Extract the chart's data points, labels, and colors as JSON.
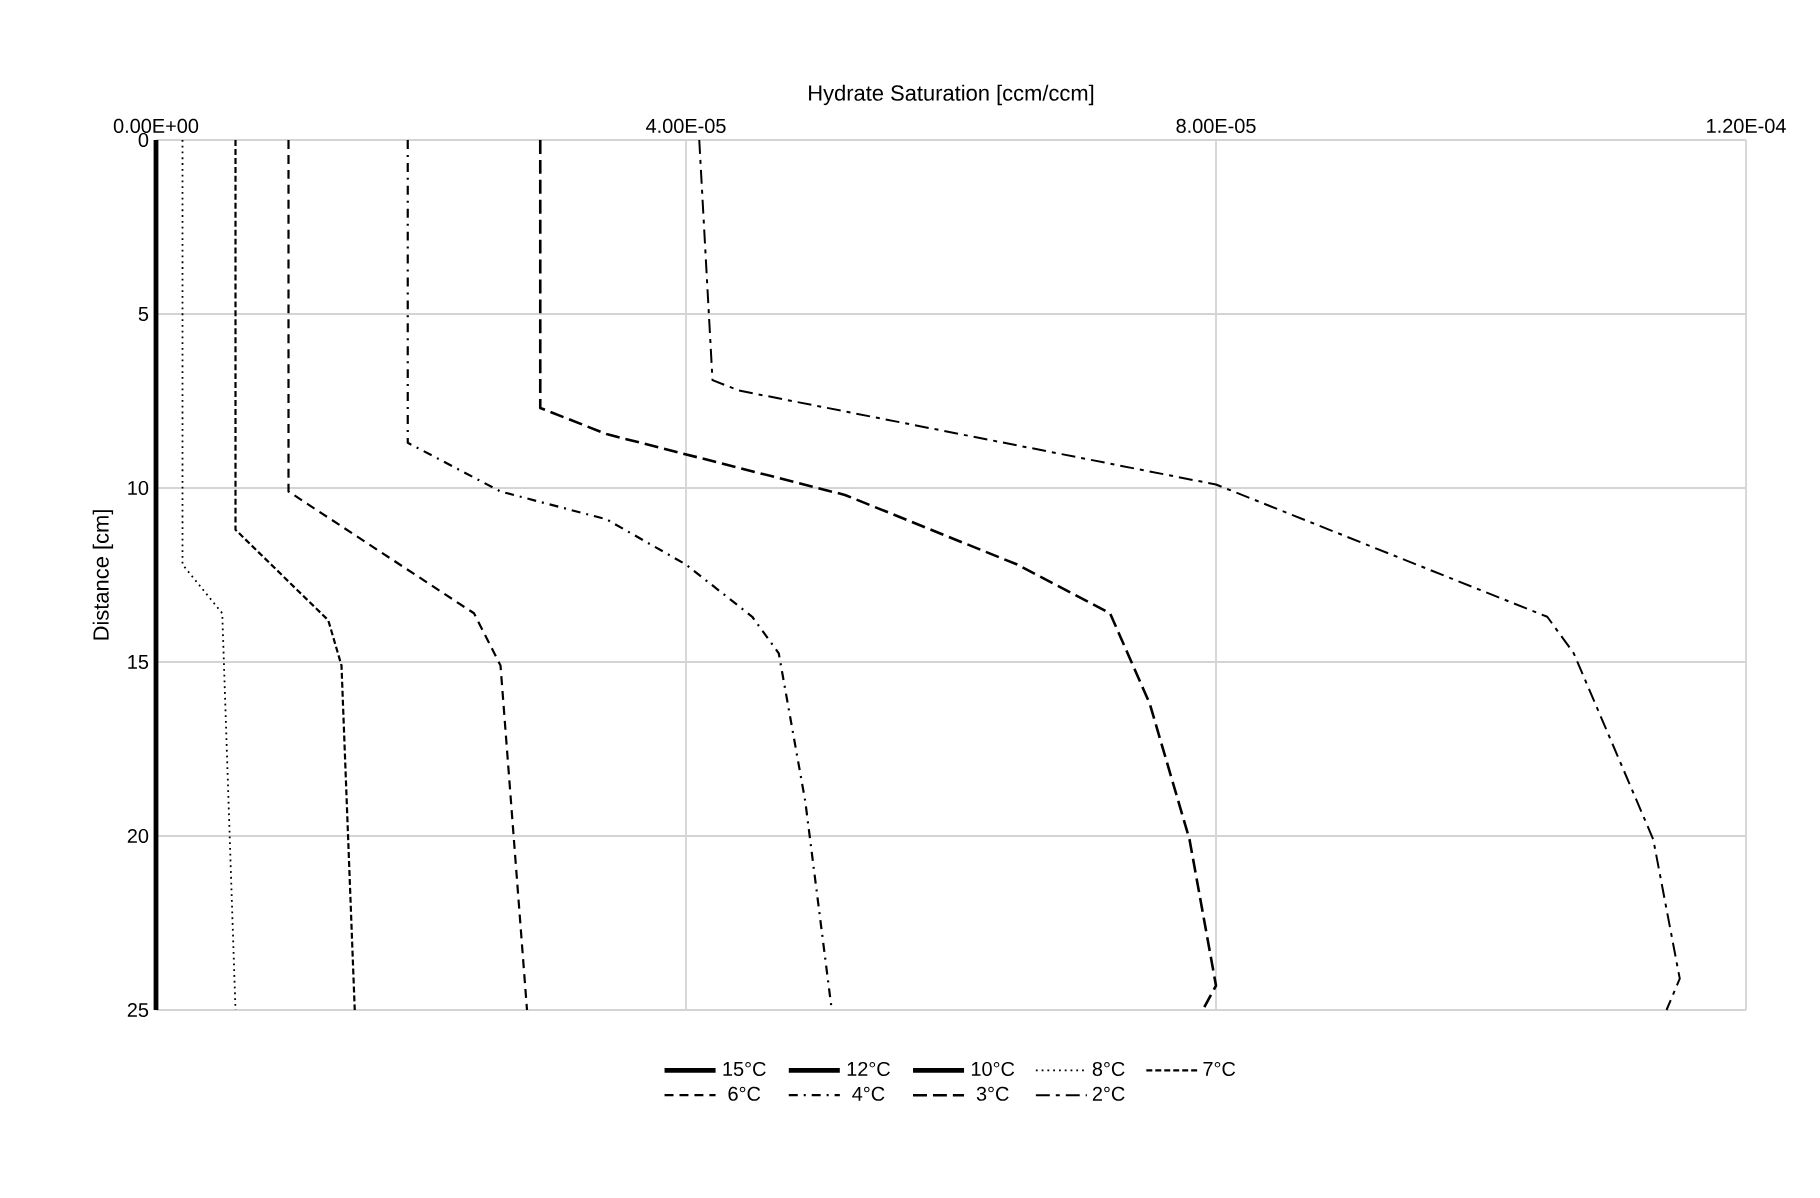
{
  "chart_data": {
    "type": "line",
    "orientation": "horizontal",
    "xlabel": "Hydrate Saturation [ccm/ccm]",
    "ylabel": "Distance [cm]",
    "xlim": [
      0,
      0.00012
    ],
    "ylim": [
      25,
      0
    ],
    "xticks": [
      {
        "value": 0,
        "label": "0.00E+00"
      },
      {
        "value": 4e-05,
        "label": "4.00E-05"
      },
      {
        "value": 8e-05,
        "label": "8.00E-05"
      },
      {
        "value": 0.00012,
        "label": "1.20E-04"
      }
    ],
    "yticks": [
      0,
      5,
      10,
      15,
      20,
      25
    ],
    "grid": true,
    "legend": "bottom",
    "series": [
      {
        "name": "15°C",
        "color": "#000000",
        "line_style": "solid",
        "x": [
          null,
          null
        ],
        "values": [
          null,
          null
        ]
      },
      {
        "name": "12°C",
        "color": "#000000",
        "line_style": "solid",
        "x": [
          null,
          null
        ],
        "values": [
          null,
          null
        ]
      },
      {
        "name": "10°C",
        "color": "#000000",
        "line_style": "solid",
        "x": [
          0,
          25
        ],
        "values": [
          0,
          0
        ]
      },
      {
        "name": "8°C",
        "color": "#000000",
        "line_style": "dotted",
        "x": [
          0,
          12.2,
          13.6,
          25
        ],
        "values": [
          2e-06,
          2e-06,
          5e-06,
          6e-06
        ]
      },
      {
        "name": "7°C",
        "color": "#000000",
        "line_style": "dashed",
        "x": [
          0,
          11.2,
          13.8,
          15.1,
          25
        ],
        "values": [
          6e-06,
          6e-06,
          1.3e-05,
          1.4e-05,
          1.5e-05
        ]
      },
      {
        "name": "6°C",
        "color": "#000000",
        "line_style": "loosely dashed",
        "x": [
          0,
          10.1,
          13.6,
          15.1,
          25
        ],
        "values": [
          1e-05,
          1e-05,
          2.4e-05,
          2.6e-05,
          2.8e-05
        ]
      },
      {
        "name": "4°C",
        "color": "#000000",
        "line_style": "dashdot",
        "x": [
          0,
          8.7,
          10.1,
          10.9,
          12.2,
          13.7,
          14.75,
          19.0,
          25
        ],
        "values": [
          1.9e-05,
          1.9e-05,
          2.6e-05,
          3.4e-05,
          4e-05,
          4.5e-05,
          4.7e-05,
          4.9e-05,
          5.1e-05
        ]
      },
      {
        "name": "3°C",
        "color": "#000000",
        "line_style": "long dashed",
        "x": [
          0,
          7.7,
          8.45,
          10.2,
          12.2,
          13.6,
          16.2,
          20.1,
          24.3,
          25
        ],
        "values": [
          2.9e-05,
          2.9e-05,
          3.4e-05,
          5.2e-05,
          6.5e-05,
          7.2e-05,
          7.5e-05,
          7.8e-05,
          8e-05,
          7.9e-05
        ]
      },
      {
        "name": "2°C",
        "color": "#000000",
        "line_style": "long dashdot",
        "x": [
          0,
          6.9,
          7.2,
          9.9,
          13.7,
          14.75,
          20.1,
          24.1,
          25
        ],
        "values": [
          4.1e-05,
          4.2e-05,
          4.4e-05,
          8e-05,
          0.000105,
          0.000107,
          0.000113,
          0.000115,
          0.000114
        ]
      }
    ]
  }
}
